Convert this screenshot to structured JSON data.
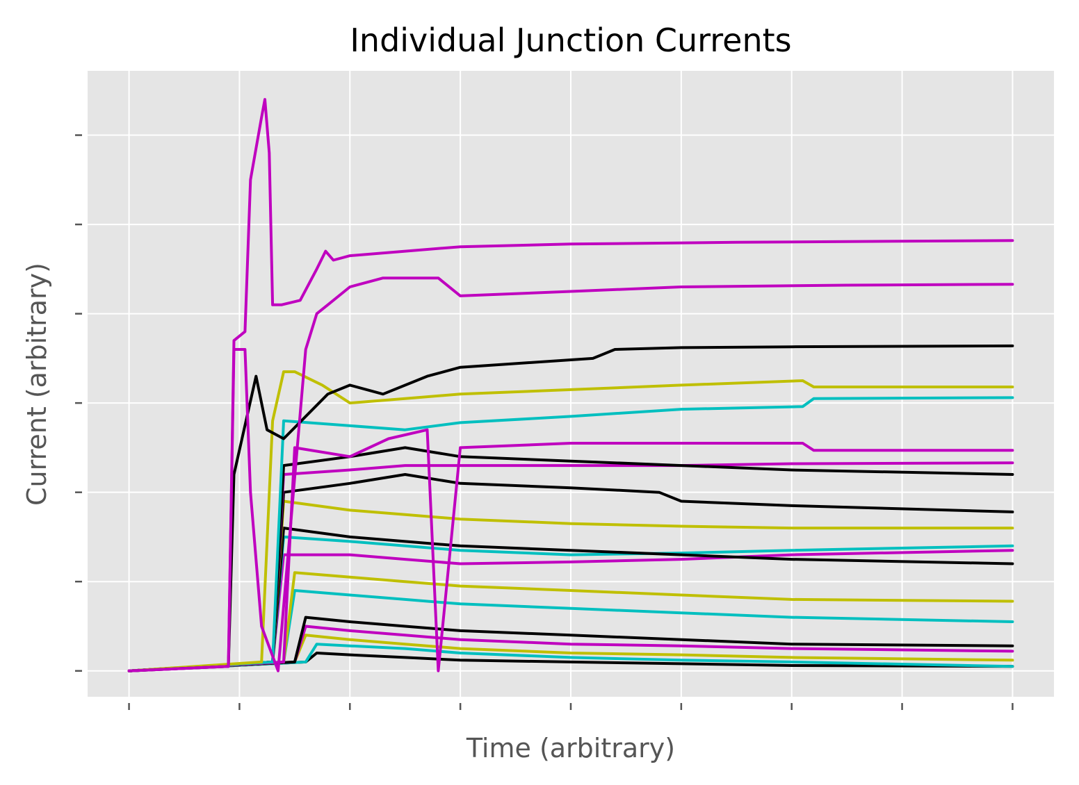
{
  "chart_data": {
    "type": "line",
    "title": "Individual Junction Currents",
    "xlabel": "Time (arbitrary)",
    "ylabel": "Current (arbitrary)",
    "xlim": [
      -0.375,
      8.375
    ],
    "ylim": [
      -0.29,
      6.72
    ],
    "xticks": [
      0,
      1,
      2,
      3,
      4,
      5,
      6,
      7,
      8
    ],
    "yticks": [
      0,
      1,
      2,
      3,
      4,
      5,
      6
    ],
    "tick_labels_visible": false,
    "grid": true,
    "legend": "none",
    "background": "#e5e5e5",
    "colors": {
      "magenta": "#bf00bf",
      "black": "#000000",
      "olive": "#bfbf00",
      "cyan": "#00bfbf"
    },
    "series": [
      {
        "color": "#bf00bf",
        "x": [
          0,
          0.9,
          0.95,
          1.05,
          1.1,
          1.2,
          1.23,
          1.27,
          1.3,
          1.35,
          1.38,
          1.55,
          1.7,
          1.78,
          1.85,
          2.0,
          2.5,
          3.0,
          4.0,
          5.5,
          8.0
        ],
        "y": [
          0,
          0.05,
          3.7,
          3.8,
          5.5,
          6.2,
          6.4,
          5.8,
          4.1,
          4.1,
          4.1,
          4.15,
          4.5,
          4.7,
          4.6,
          4.65,
          4.7,
          4.75,
          4.78,
          4.8,
          4.82
        ]
      },
      {
        "color": "#bf00bf",
        "x": [
          0,
          0.9,
          0.95,
          1.05,
          1.1,
          1.2,
          1.35,
          1.6,
          1.7,
          1.8,
          2.0,
          2.3,
          2.8,
          3.0,
          4.0,
          5.0,
          6.5,
          8.0
        ],
        "y": [
          0,
          0.05,
          3.6,
          3.6,
          2.0,
          0.5,
          0.0,
          3.6,
          4.0,
          4.1,
          4.3,
          4.4,
          4.4,
          4.2,
          4.25,
          4.3,
          4.32,
          4.33
        ]
      },
      {
        "color": "#000000",
        "x": [
          0,
          0.9,
          0.95,
          1.15,
          1.25,
          1.4,
          1.8,
          2.0,
          2.3,
          2.7,
          3.0,
          3.6,
          4.2,
          4.4,
          5.0,
          6.0,
          8.0
        ],
        "y": [
          0,
          0.05,
          2.2,
          3.3,
          2.7,
          2.6,
          3.1,
          3.2,
          3.1,
          3.3,
          3.4,
          3.45,
          3.5,
          3.6,
          3.62,
          3.63,
          3.64
        ]
      },
      {
        "color": "#bfbf00",
        "x": [
          0,
          1.2,
          1.3,
          1.4,
          1.5,
          1.75,
          2.0,
          2.5,
          3.0,
          4.0,
          5.0,
          6.1,
          6.2,
          8.0
        ],
        "y": [
          0,
          0.1,
          2.8,
          3.35,
          3.35,
          3.2,
          3.0,
          3.05,
          3.1,
          3.15,
          3.2,
          3.25,
          3.18,
          3.18
        ]
      },
      {
        "color": "#00bfbf",
        "x": [
          0,
          1.3,
          1.4,
          2.5,
          3.0,
          4.0,
          5.0,
          6.1,
          6.2,
          8.0
        ],
        "y": [
          0,
          0.1,
          2.8,
          2.7,
          2.78,
          2.85,
          2.93,
          2.96,
          3.05,
          3.06
        ]
      },
      {
        "color": "#bf00bf",
        "x": [
          0,
          1.4,
          1.5,
          2.0,
          2.35,
          2.7,
          2.8,
          3.0,
          4.0,
          5.0,
          6.1,
          6.2,
          8.0
        ],
        "y": [
          0,
          0.1,
          2.5,
          2.4,
          2.6,
          2.7,
          0.0,
          2.5,
          2.55,
          2.55,
          2.55,
          2.47,
          2.47
        ]
      },
      {
        "color": "#000000",
        "x": [
          0,
          1.3,
          1.4,
          2.0,
          2.5,
          3.0,
          4.0,
          5.0,
          6.0,
          8.0
        ],
        "y": [
          0,
          0.1,
          2.3,
          2.4,
          2.5,
          2.4,
          2.35,
          2.3,
          2.25,
          2.2
        ]
      },
      {
        "color": "#bf00bf",
        "x": [
          0,
          1.3,
          1.4,
          2.0,
          2.5,
          3.0,
          4.0,
          5.0,
          6.0,
          8.0
        ],
        "y": [
          0,
          0.1,
          2.2,
          2.25,
          2.3,
          2.3,
          2.3,
          2.3,
          2.32,
          2.33
        ]
      },
      {
        "color": "#000000",
        "x": [
          0,
          1.3,
          1.4,
          2.0,
          2.5,
          3.0,
          4.0,
          4.8,
          5.0,
          6.0,
          8.0
        ],
        "y": [
          0,
          0.1,
          2.0,
          2.1,
          2.2,
          2.1,
          2.05,
          2.0,
          1.9,
          1.85,
          1.78
        ]
      },
      {
        "color": "#bfbf00",
        "x": [
          0,
          1.3,
          1.4,
          2.0,
          2.5,
          3.0,
          4.0,
          5.0,
          6.0,
          8.0
        ],
        "y": [
          0,
          0.1,
          1.9,
          1.8,
          1.75,
          1.7,
          1.65,
          1.62,
          1.6,
          1.6
        ]
      },
      {
        "color": "#000000",
        "x": [
          0,
          1.3,
          1.4,
          2.0,
          2.5,
          3.0,
          4.0,
          5.0,
          6.0,
          8.0
        ],
        "y": [
          0,
          0.1,
          1.6,
          1.5,
          1.45,
          1.4,
          1.35,
          1.3,
          1.25,
          1.2
        ]
      },
      {
        "color": "#00bfbf",
        "x": [
          0,
          1.3,
          1.4,
          2.0,
          2.5,
          3.0,
          4.0,
          5.0,
          6.0,
          8.0
        ],
        "y": [
          0,
          0.1,
          1.5,
          1.45,
          1.4,
          1.35,
          1.3,
          1.32,
          1.35,
          1.4
        ]
      },
      {
        "color": "#bf00bf",
        "x": [
          0,
          1.3,
          1.4,
          2.0,
          2.5,
          3.0,
          4.0,
          5.0,
          6.0,
          8.0
        ],
        "y": [
          0,
          0.1,
          1.3,
          1.3,
          1.25,
          1.2,
          1.22,
          1.25,
          1.3,
          1.35
        ]
      },
      {
        "color": "#bfbf00",
        "x": [
          0,
          1.4,
          1.5,
          2.0,
          2.5,
          3.0,
          4.0,
          5.0,
          6.0,
          8.0
        ],
        "y": [
          0,
          0.1,
          1.1,
          1.05,
          1.0,
          0.95,
          0.9,
          0.85,
          0.8,
          0.78
        ]
      },
      {
        "color": "#00bfbf",
        "x": [
          0,
          1.4,
          1.5,
          2.0,
          2.5,
          3.0,
          4.0,
          5.0,
          6.0,
          8.0
        ],
        "y": [
          0,
          0.1,
          0.9,
          0.85,
          0.8,
          0.75,
          0.7,
          0.65,
          0.6,
          0.55
        ]
      },
      {
        "color": "#000000",
        "x": [
          0,
          1.5,
          1.6,
          2.0,
          2.5,
          3.0,
          4.0,
          5.0,
          6.0,
          8.0
        ],
        "y": [
          0,
          0.1,
          0.6,
          0.55,
          0.5,
          0.45,
          0.4,
          0.35,
          0.3,
          0.28
        ]
      },
      {
        "color": "#bf00bf",
        "x": [
          0,
          1.5,
          1.6,
          2.0,
          2.5,
          3.0,
          4.0,
          5.0,
          6.0,
          8.0
        ],
        "y": [
          0,
          0.1,
          0.5,
          0.45,
          0.4,
          0.35,
          0.3,
          0.28,
          0.25,
          0.22
        ]
      },
      {
        "color": "#bfbf00",
        "x": [
          0,
          1.5,
          1.6,
          2.0,
          2.5,
          3.0,
          4.0,
          5.0,
          6.0,
          8.0
        ],
        "y": [
          0,
          0.1,
          0.4,
          0.35,
          0.3,
          0.25,
          0.2,
          0.18,
          0.15,
          0.12
        ]
      },
      {
        "color": "#00bfbf",
        "x": [
          0,
          1.6,
          1.7,
          2.0,
          2.5,
          3.0,
          4.0,
          5.0,
          6.0,
          8.0
        ],
        "y": [
          0,
          0.1,
          0.3,
          0.28,
          0.25,
          0.2,
          0.15,
          0.12,
          0.1,
          0.05
        ]
      },
      {
        "color": "#000000",
        "x": [
          0,
          1.6,
          1.7,
          2.0,
          2.5,
          3.0,
          4.0,
          5.0,
          6.0,
          8.0
        ],
        "y": [
          0,
          0.1,
          0.2,
          0.18,
          0.15,
          0.12,
          0.1,
          0.08,
          0.06,
          0.05
        ]
      }
    ]
  }
}
